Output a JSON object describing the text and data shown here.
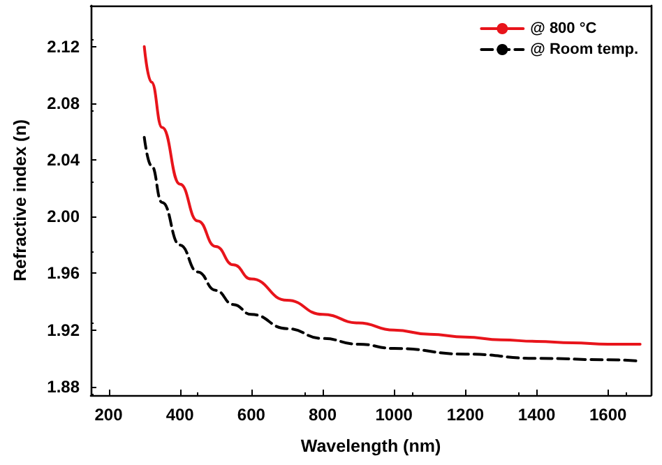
{
  "chart_data": {
    "type": "line",
    "xlabel": "Wavelength (nm)",
    "ylabel": "Refractive index (n)",
    "xlim": [
      150,
      1720
    ],
    "xticks": [
      200,
      400,
      600,
      800,
      1000,
      1200,
      1400,
      1600
    ],
    "ylim": [
      1.874,
      2.149
    ],
    "yticks": [
      1.88,
      1.92,
      1.96,
      {
        "value": 2,
        "label": "2.00"
      },
      2.04,
      2.08,
      2.12
    ],
    "grid": false,
    "legend": "top right",
    "marker": "none",
    "series": [
      {
        "name": "@ 800 °C",
        "color": "#e8141b",
        "line_style": "solid",
        "x": [
          300,
          320,
          350,
          400,
          450,
          500,
          550,
          600,
          700,
          800,
          900,
          1000,
          1100,
          1200,
          1300,
          1400,
          1500,
          1600,
          1690
        ],
        "values": [
          2.12,
          2.095,
          2.063,
          2.023,
          1.997,
          1.979,
          1.966,
          1.956,
          1.941,
          1.931,
          1.925,
          1.92,
          1.917,
          1.915,
          1.913,
          1.912,
          1.911,
          1.91,
          1.91
        ]
      },
      {
        "name": "@ Room temp.",
        "color": "#000000",
        "line_style": "dashed",
        "x": [
          300,
          320,
          350,
          400,
          450,
          500,
          550,
          600,
          700,
          800,
          900,
          1000,
          1200,
          1400,
          1600,
          1690
        ],
        "values": [
          2.056,
          2.036,
          2.01,
          1.98,
          1.961,
          1.948,
          1.938,
          1.931,
          1.921,
          1.914,
          1.91,
          1.907,
          1.903,
          1.9,
          1.899,
          1.898
        ]
      }
    ]
  }
}
